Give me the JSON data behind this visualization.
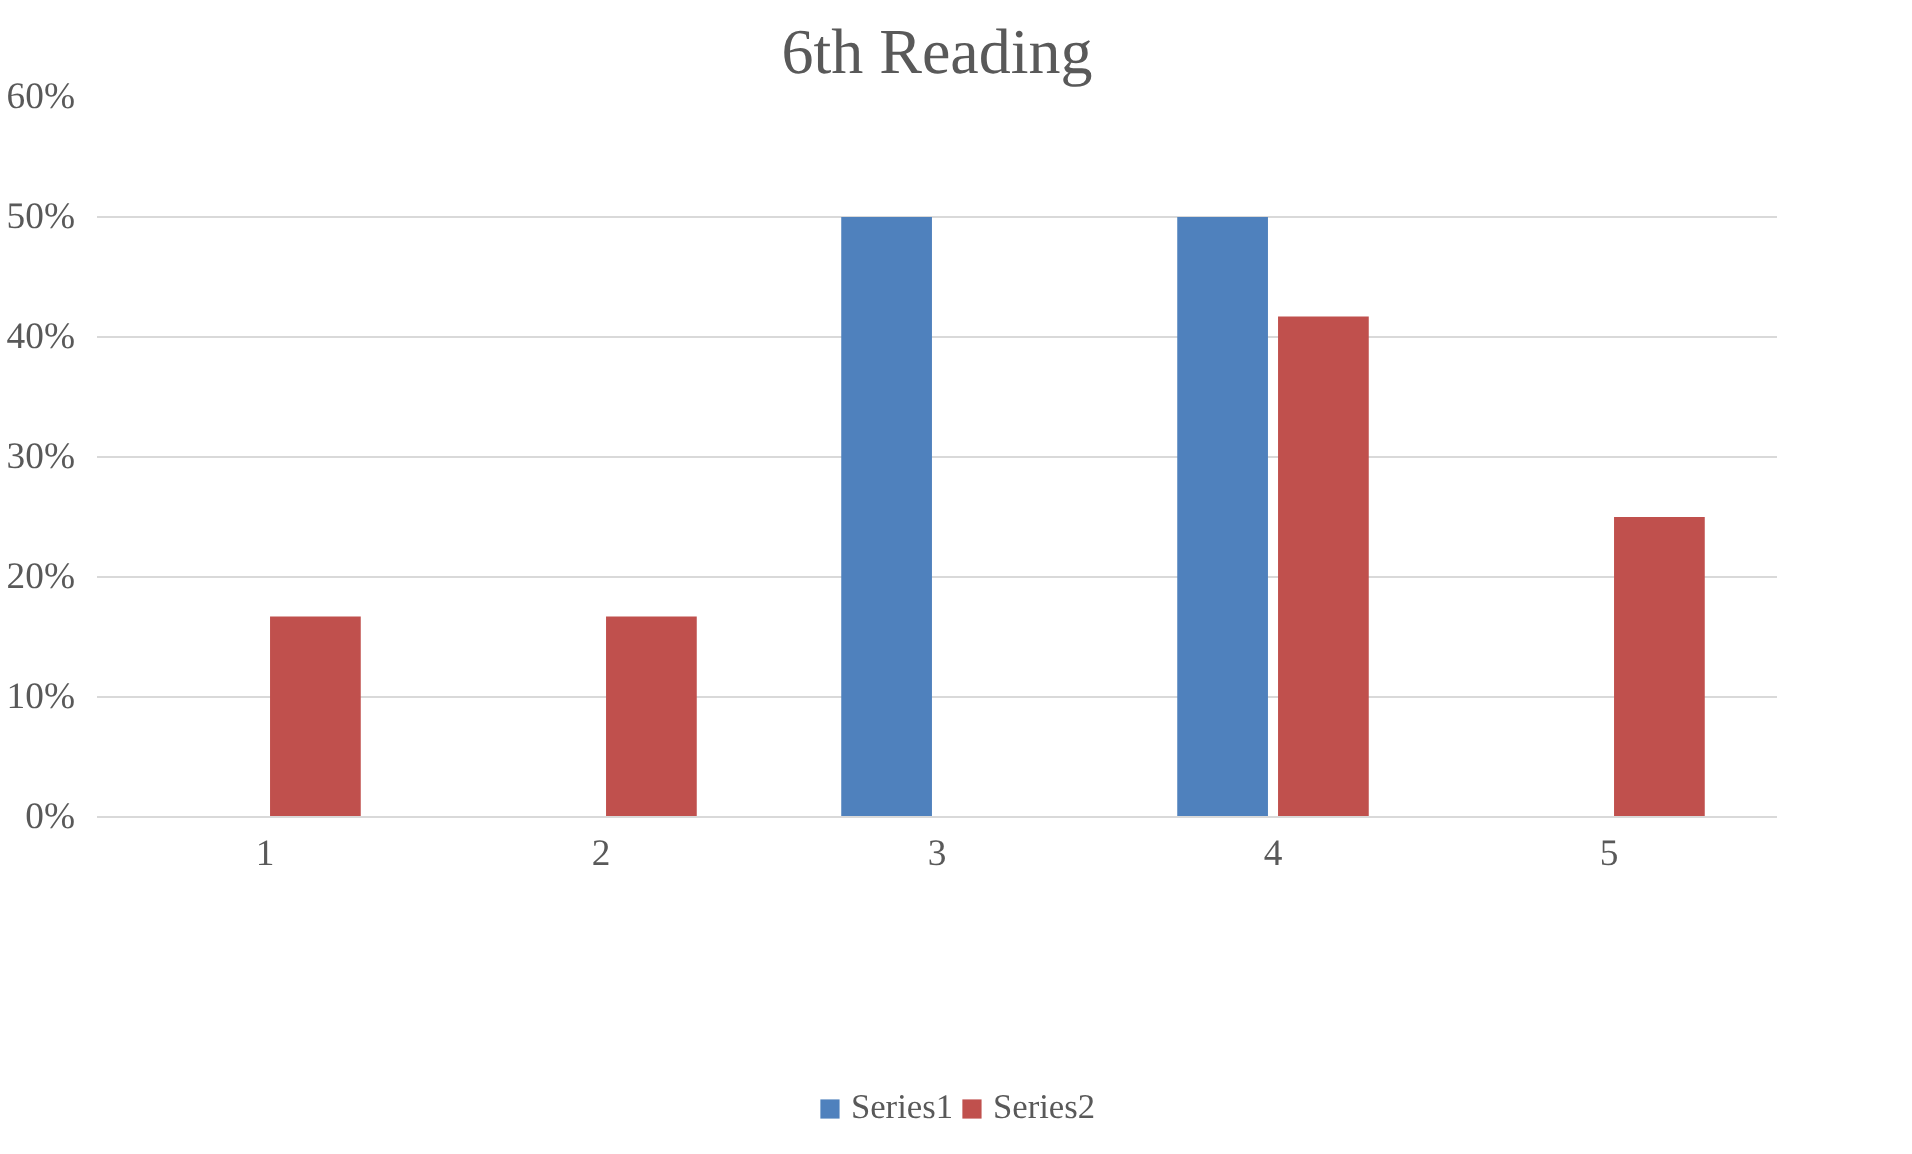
{
  "chart_data": {
    "type": "bar",
    "title": "6th Reading",
    "categories": [
      "1",
      "2",
      "3",
      "4",
      "5"
    ],
    "series": [
      {
        "name": "Series1",
        "color": "#4f81bd",
        "values": [
          0,
          0,
          50,
          50,
          0
        ]
      },
      {
        "name": "Series2",
        "color": "#c0504d",
        "values": [
          16.7,
          16.7,
          0,
          41.7,
          25
        ]
      }
    ],
    "ylim": [
      0,
      60
    ],
    "yticks": [
      {
        "value": 0,
        "label": "0%"
      },
      {
        "value": 10,
        "label": "10%"
      },
      {
        "value": 20,
        "label": "20%"
      },
      {
        "value": 30,
        "label": "30%"
      },
      {
        "value": 40,
        "label": "40%"
      },
      {
        "value": 50,
        "label": "50%"
      },
      {
        "value": 60,
        "label": "60%"
      }
    ],
    "grid": "y",
    "legend": "bottom"
  }
}
